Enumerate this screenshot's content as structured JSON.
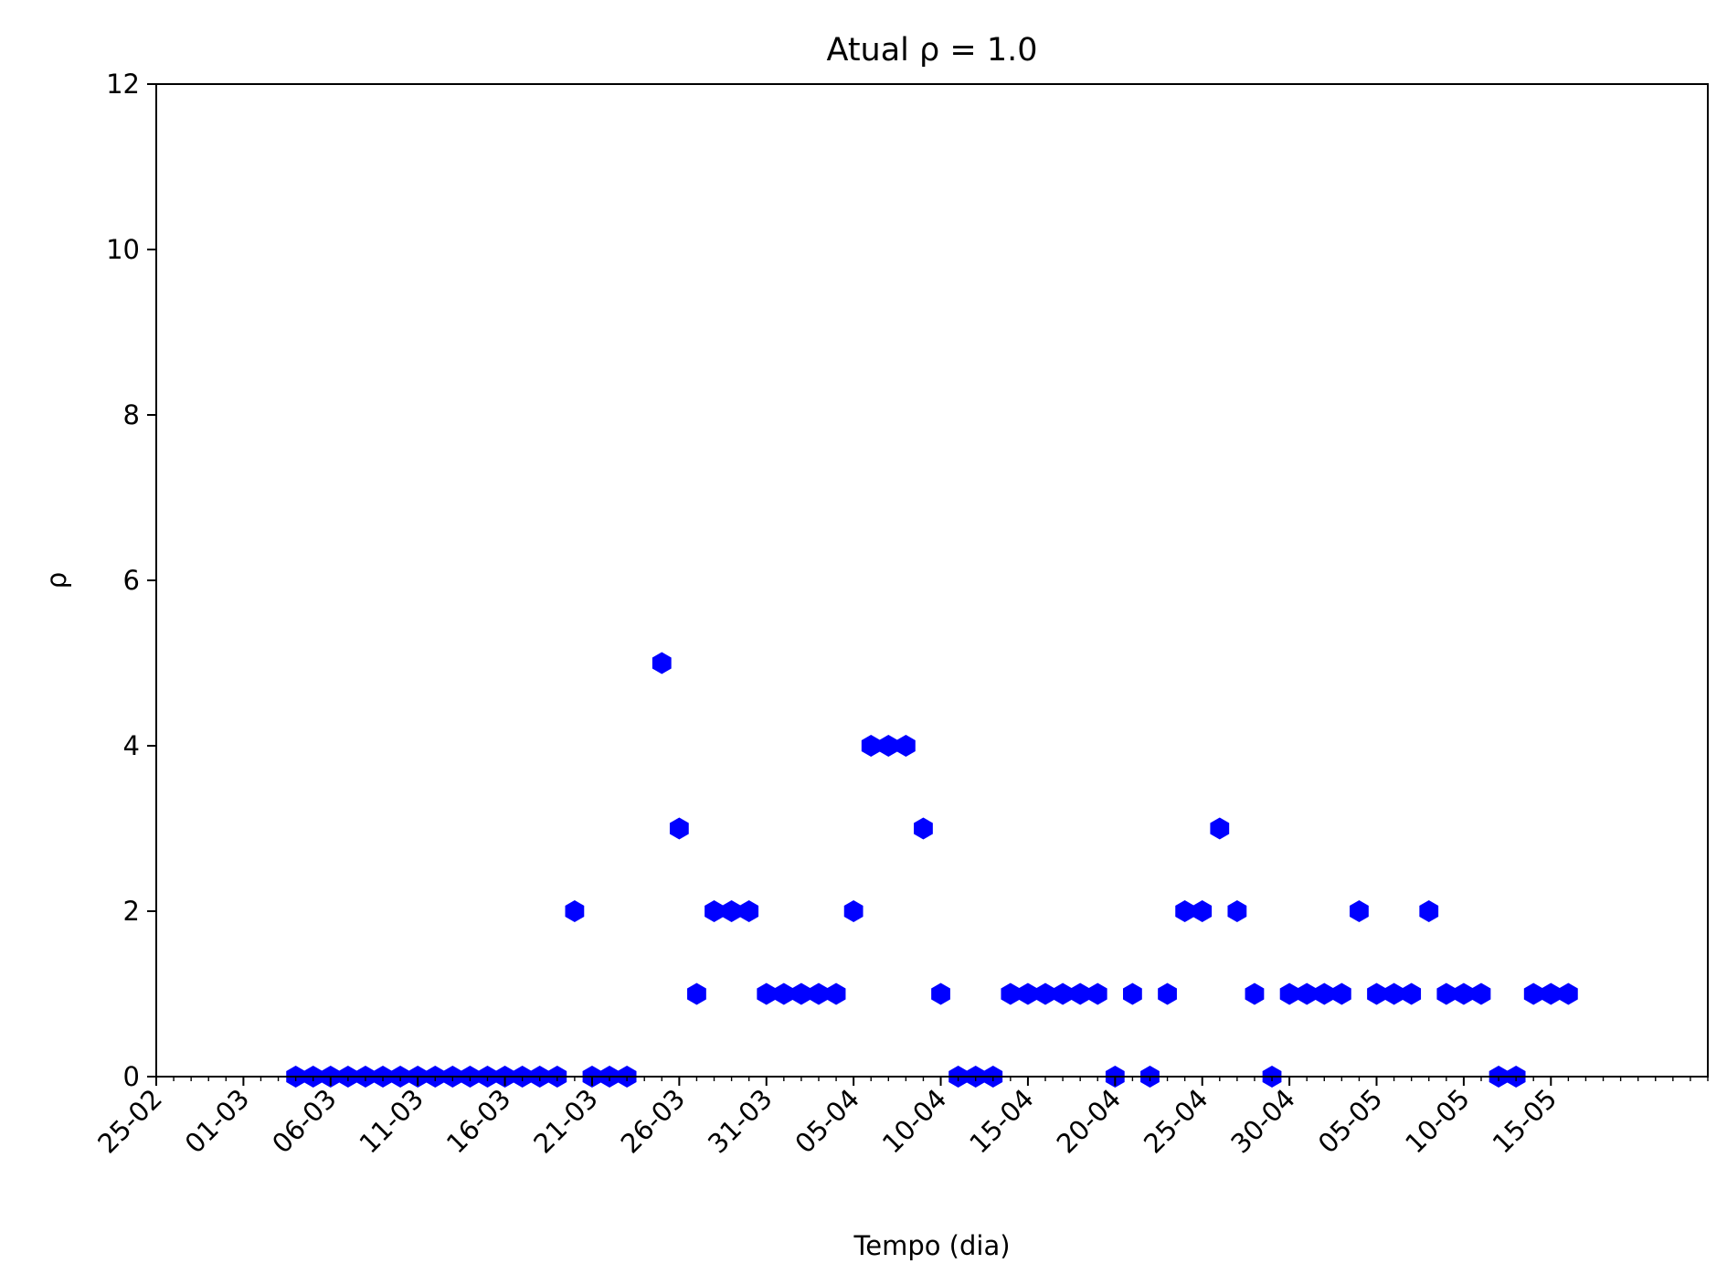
{
  "chart_data": {
    "type": "scatter",
    "title": "Atual ρ = 1.0",
    "xlabel": "Tempo (dia)",
    "ylabel": "ρ",
    "ylim": [
      0,
      12
    ],
    "yticks": [
      "0",
      "2",
      "4",
      "6",
      "8",
      "10",
      "12"
    ],
    "xlim": [
      "2020-02-25",
      "2020-05-24"
    ],
    "xticks": [
      "25-02",
      "01-03",
      "06-03",
      "11-03",
      "16-03",
      "21-03",
      "26-03",
      "31-03",
      "05-04",
      "10-04",
      "15-04",
      "20-04",
      "25-04",
      "30-04",
      "05-05",
      "10-05",
      "15-05"
    ],
    "grid": false,
    "marker": "hexagon",
    "color": "#0000ff",
    "points": [
      {
        "x": "2020-03-04",
        "y": 0
      },
      {
        "x": "2020-03-05",
        "y": 0
      },
      {
        "x": "2020-03-06",
        "y": 0
      },
      {
        "x": "2020-03-07",
        "y": 0
      },
      {
        "x": "2020-03-08",
        "y": 0
      },
      {
        "x": "2020-03-09",
        "y": 0
      },
      {
        "x": "2020-03-10",
        "y": 0
      },
      {
        "x": "2020-03-11",
        "y": 0
      },
      {
        "x": "2020-03-12",
        "y": 0
      },
      {
        "x": "2020-03-13",
        "y": 0
      },
      {
        "x": "2020-03-14",
        "y": 0
      },
      {
        "x": "2020-03-15",
        "y": 0
      },
      {
        "x": "2020-03-16",
        "y": 0
      },
      {
        "x": "2020-03-17",
        "y": 0
      },
      {
        "x": "2020-03-18",
        "y": 0
      },
      {
        "x": "2020-03-19",
        "y": 0
      },
      {
        "x": "2020-03-20",
        "y": 2
      },
      {
        "x": "2020-03-21",
        "y": 0
      },
      {
        "x": "2020-03-22",
        "y": 0
      },
      {
        "x": "2020-03-23",
        "y": 0
      },
      {
        "x": "2020-03-25",
        "y": 5
      },
      {
        "x": "2020-03-26",
        "y": 3
      },
      {
        "x": "2020-03-27",
        "y": 1
      },
      {
        "x": "2020-03-28",
        "y": 2
      },
      {
        "x": "2020-03-29",
        "y": 2
      },
      {
        "x": "2020-03-30",
        "y": 2
      },
      {
        "x": "2020-03-31",
        "y": 1
      },
      {
        "x": "2020-04-01",
        "y": 1
      },
      {
        "x": "2020-04-02",
        "y": 1
      },
      {
        "x": "2020-04-03",
        "y": 1
      },
      {
        "x": "2020-04-04",
        "y": 1
      },
      {
        "x": "2020-04-05",
        "y": 2
      },
      {
        "x": "2020-04-06",
        "y": 4
      },
      {
        "x": "2020-04-07",
        "y": 4
      },
      {
        "x": "2020-04-08",
        "y": 4
      },
      {
        "x": "2020-04-09",
        "y": 3
      },
      {
        "x": "2020-04-10",
        "y": 1
      },
      {
        "x": "2020-04-11",
        "y": 0
      },
      {
        "x": "2020-04-12",
        "y": 0
      },
      {
        "x": "2020-04-13",
        "y": 0
      },
      {
        "x": "2020-04-14",
        "y": 1
      },
      {
        "x": "2020-04-15",
        "y": 1
      },
      {
        "x": "2020-04-16",
        "y": 1
      },
      {
        "x": "2020-04-17",
        "y": 1
      },
      {
        "x": "2020-04-18",
        "y": 1
      },
      {
        "x": "2020-04-19",
        "y": 1
      },
      {
        "x": "2020-04-20",
        "y": 0
      },
      {
        "x": "2020-04-21",
        "y": 1
      },
      {
        "x": "2020-04-22",
        "y": 0
      },
      {
        "x": "2020-04-23",
        "y": 1
      },
      {
        "x": "2020-04-24",
        "y": 2
      },
      {
        "x": "2020-04-25",
        "y": 2
      },
      {
        "x": "2020-04-26",
        "y": 3
      },
      {
        "x": "2020-04-27",
        "y": 2
      },
      {
        "x": "2020-04-28",
        "y": 1
      },
      {
        "x": "2020-04-29",
        "y": 0
      },
      {
        "x": "2020-04-30",
        "y": 1
      },
      {
        "x": "2020-05-01",
        "y": 1
      },
      {
        "x": "2020-05-02",
        "y": 1
      },
      {
        "x": "2020-05-03",
        "y": 1
      },
      {
        "x": "2020-05-04",
        "y": 2
      },
      {
        "x": "2020-05-05",
        "y": 1
      },
      {
        "x": "2020-05-06",
        "y": 1
      },
      {
        "x": "2020-05-07",
        "y": 1
      },
      {
        "x": "2020-05-08",
        "y": 2
      },
      {
        "x": "2020-05-09",
        "y": 1
      },
      {
        "x": "2020-05-10",
        "y": 1
      },
      {
        "x": "2020-05-11",
        "y": 1
      },
      {
        "x": "2020-05-12",
        "y": 0
      },
      {
        "x": "2020-05-13",
        "y": 0
      },
      {
        "x": "2020-05-14",
        "y": 1
      },
      {
        "x": "2020-05-15",
        "y": 1
      },
      {
        "x": "2020-05-16",
        "y": 1
      }
    ]
  }
}
